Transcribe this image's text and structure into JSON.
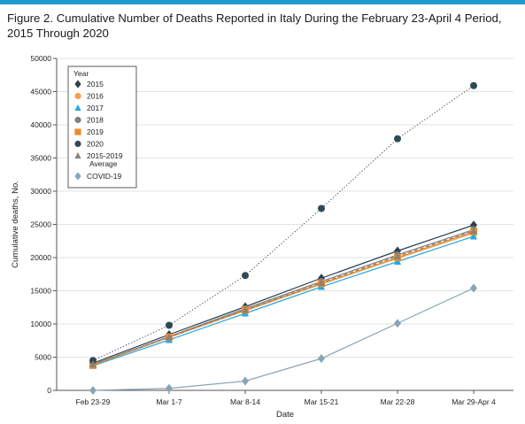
{
  "figure": {
    "title_line1": "Figure 2. Cumulative Number of Deaths Reported in Italy During the February 23-April 4 Period,",
    "title_line2": "2015 Through 2020",
    "accent_color": "#1f9bd1"
  },
  "chart_data": {
    "type": "line",
    "categories": [
      "Feb 23-29",
      "Mar 1-7",
      "Mar 8-14",
      "Mar 15-21",
      "Mar 22-28",
      "Mar 29-Apr 4"
    ],
    "xlabel": "Date",
    "ylabel": "Cumulative deaths, No.",
    "ylim": [
      0,
      50000
    ],
    "yticks": [
      0,
      5000,
      10000,
      15000,
      20000,
      25000,
      30000,
      35000,
      40000,
      45000,
      50000
    ],
    "ytick_labels": [
      "0",
      "5000",
      "10000",
      "15000",
      "20000",
      "25000",
      "30000",
      "35000",
      "40000",
      "45000",
      "50000"
    ],
    "grid": true,
    "legend_title": "Year",
    "legend_position": "top-left",
    "series": [
      {
        "name": "2015",
        "values": [
          4100,
          8400,
          12600,
          16900,
          21000,
          24900
        ],
        "color": "#2b3f4f",
        "marker": "diamond",
        "line": "solid"
      },
      {
        "name": "2016",
        "values": [
          3900,
          8000,
          12000,
          16000,
          19900,
          23700
        ],
        "color": "#f59f4a",
        "marker": "circle",
        "line": "solid"
      },
      {
        "name": "2017",
        "values": [
          3700,
          7600,
          11600,
          15600,
          19400,
          23200
        ],
        "color": "#27a7e0",
        "marker": "triangle",
        "line": "solid"
      },
      {
        "name": "2018",
        "values": [
          3900,
          8100,
          12300,
          16400,
          20400,
          24200
        ],
        "color": "#7f7f7f",
        "marker": "circle",
        "line": "solid"
      },
      {
        "name": "2019",
        "values": [
          3800,
          8000,
          12100,
          16100,
          20000,
          23900
        ],
        "color": "#ee8c2c",
        "marker": "square",
        "line": "solid"
      },
      {
        "name": "2020",
        "values": [
          4500,
          9800,
          17300,
          27400,
          37900,
          45900
        ],
        "color": "#2e4a57",
        "marker": "circle",
        "line": "dotted"
      },
      {
        "name": "2015-2019 Average",
        "values": [
          3900,
          8000,
          12100,
          16200,
          20200,
          24000
        ],
        "color": "#8c8272",
        "marker": "triangle",
        "line": "dashed"
      },
      {
        "name": "COVID-19",
        "values": [
          0,
          300,
          1400,
          4800,
          10100,
          15400
        ],
        "color": "#8aa4b4",
        "marker": "diamond",
        "line": "solid"
      }
    ]
  }
}
